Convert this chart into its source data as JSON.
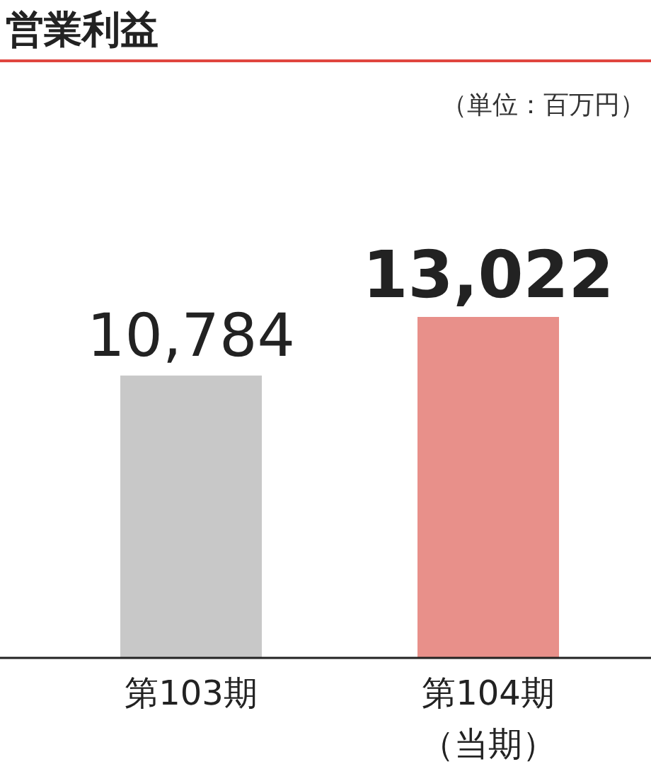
{
  "chart_data": {
    "type": "bar",
    "title": "営業利益",
    "annotations": [
      "（単位：百万円）"
    ],
    "categories": [
      "第103期",
      "第104期（当期）"
    ],
    "values": [
      10784,
      13022
    ],
    "colors": [
      "#c8c8c8",
      "#e8908a"
    ],
    "value_labels": [
      "10,784",
      "13,022"
    ]
  }
}
